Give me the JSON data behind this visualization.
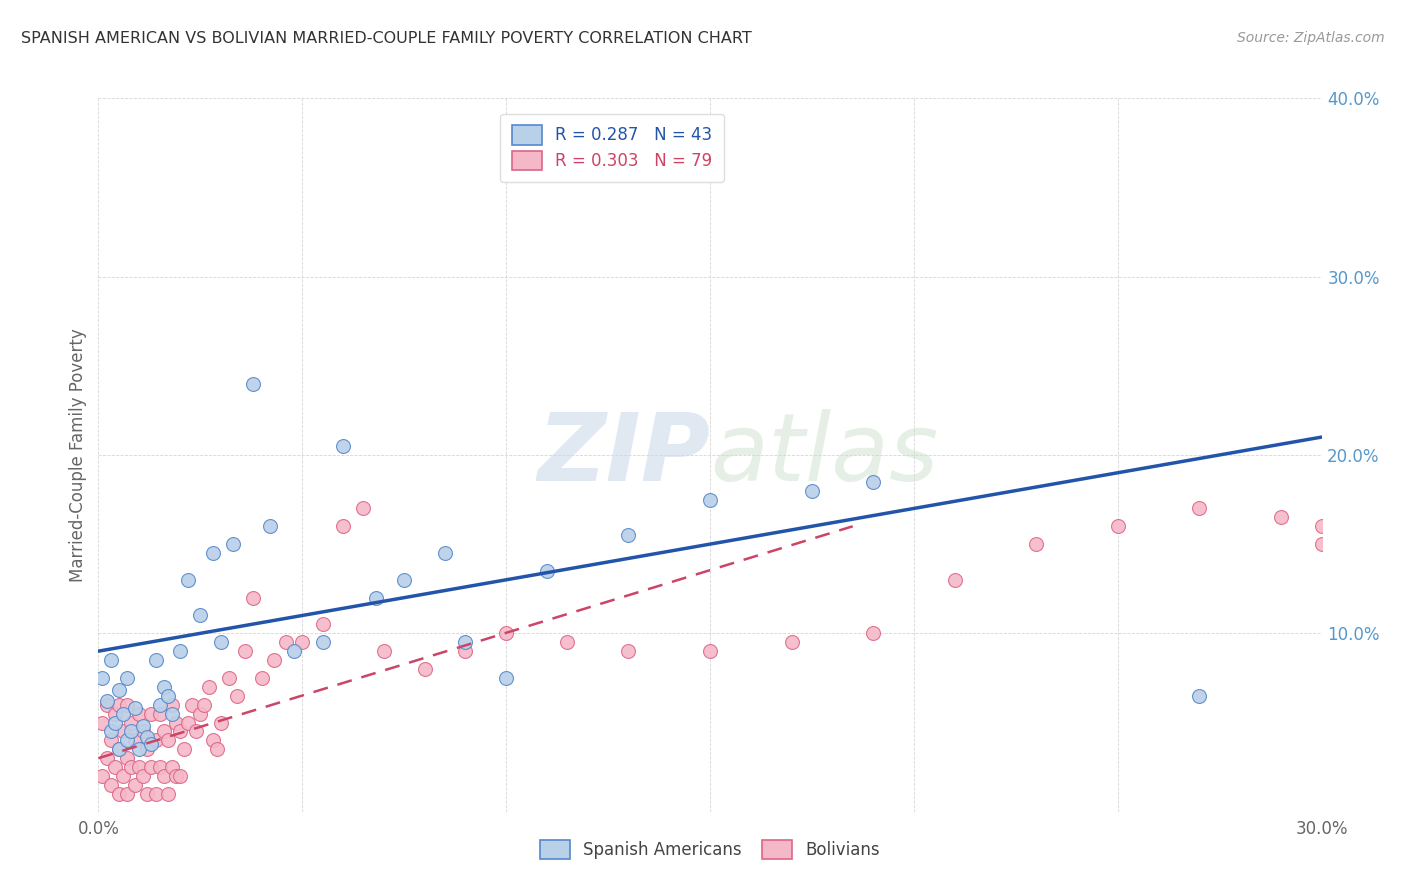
{
  "title": "SPANISH AMERICAN VS BOLIVIAN MARRIED-COUPLE FAMILY POVERTY CORRELATION CHART",
  "source": "Source: ZipAtlas.com",
  "ylabel": "Married-Couple Family Poverty",
  "xlim": [
    0.0,
    0.3
  ],
  "ylim": [
    0.0,
    0.4
  ],
  "xticks": [
    0.0,
    0.05,
    0.1,
    0.15,
    0.2,
    0.25,
    0.3
  ],
  "yticks": [
    0.0,
    0.1,
    0.2,
    0.3,
    0.4
  ],
  "spanish_color": "#b8d0e8",
  "bolivian_color": "#f5b8c8",
  "spanish_edge": "#5588cc",
  "bolivian_edge": "#dd6688",
  "trend_spanish_color": "#2255aa",
  "trend_bolivian_color": "#cc4466",
  "watermark_zip": "ZIP",
  "watermark_atlas": "atlas",
  "sp_x": [
    0.001,
    0.002,
    0.003,
    0.003,
    0.004,
    0.005,
    0.005,
    0.006,
    0.007,
    0.007,
    0.008,
    0.009,
    0.01,
    0.011,
    0.012,
    0.013,
    0.014,
    0.015,
    0.016,
    0.017,
    0.018,
    0.02,
    0.022,
    0.025,
    0.028,
    0.03,
    0.033,
    0.038,
    0.042,
    0.048,
    0.055,
    0.06,
    0.068,
    0.075,
    0.085,
    0.09,
    0.1,
    0.11,
    0.13,
    0.15,
    0.175,
    0.19,
    0.27
  ],
  "sp_y": [
    0.075,
    0.062,
    0.045,
    0.085,
    0.05,
    0.035,
    0.068,
    0.055,
    0.04,
    0.075,
    0.045,
    0.058,
    0.035,
    0.048,
    0.042,
    0.038,
    0.085,
    0.06,
    0.07,
    0.065,
    0.055,
    0.09,
    0.13,
    0.11,
    0.145,
    0.095,
    0.15,
    0.24,
    0.16,
    0.09,
    0.095,
    0.205,
    0.12,
    0.13,
    0.145,
    0.095,
    0.075,
    0.135,
    0.155,
    0.175,
    0.18,
    0.185,
    0.065
  ],
  "bo_x": [
    0.001,
    0.001,
    0.002,
    0.002,
    0.003,
    0.003,
    0.004,
    0.004,
    0.005,
    0.005,
    0.005,
    0.006,
    0.006,
    0.007,
    0.007,
    0.007,
    0.008,
    0.008,
    0.009,
    0.009,
    0.01,
    0.01,
    0.011,
    0.011,
    0.012,
    0.012,
    0.013,
    0.013,
    0.014,
    0.014,
    0.015,
    0.015,
    0.016,
    0.016,
    0.017,
    0.017,
    0.018,
    0.018,
    0.019,
    0.019,
    0.02,
    0.02,
    0.021,
    0.022,
    0.023,
    0.024,
    0.025,
    0.026,
    0.027,
    0.028,
    0.029,
    0.03,
    0.032,
    0.034,
    0.036,
    0.038,
    0.04,
    0.043,
    0.046,
    0.05,
    0.055,
    0.06,
    0.065,
    0.07,
    0.08,
    0.09,
    0.1,
    0.115,
    0.13,
    0.15,
    0.17,
    0.19,
    0.21,
    0.23,
    0.25,
    0.27,
    0.29,
    0.3,
    0.3
  ],
  "bo_y": [
    0.02,
    0.05,
    0.03,
    0.06,
    0.015,
    0.04,
    0.025,
    0.055,
    0.01,
    0.035,
    0.06,
    0.02,
    0.045,
    0.01,
    0.03,
    0.06,
    0.025,
    0.05,
    0.015,
    0.04,
    0.025,
    0.055,
    0.02,
    0.045,
    0.01,
    0.035,
    0.025,
    0.055,
    0.01,
    0.04,
    0.025,
    0.055,
    0.02,
    0.045,
    0.01,
    0.04,
    0.025,
    0.06,
    0.02,
    0.05,
    0.02,
    0.045,
    0.035,
    0.05,
    0.06,
    0.045,
    0.055,
    0.06,
    0.07,
    0.04,
    0.035,
    0.05,
    0.075,
    0.065,
    0.09,
    0.12,
    0.075,
    0.085,
    0.095,
    0.095,
    0.105,
    0.16,
    0.17,
    0.09,
    0.08,
    0.09,
    0.1,
    0.095,
    0.09,
    0.09,
    0.095,
    0.1,
    0.13,
    0.15,
    0.16,
    0.17,
    0.165,
    0.15,
    0.16
  ],
  "trend_sp_x0": 0.0,
  "trend_sp_y0": 0.09,
  "trend_sp_x1": 0.3,
  "trend_sp_y1": 0.21,
  "trend_bo_x0": 0.0,
  "trend_bo_y0": 0.03,
  "trend_bo_x1": 0.185,
  "trend_bo_y1": 0.16
}
